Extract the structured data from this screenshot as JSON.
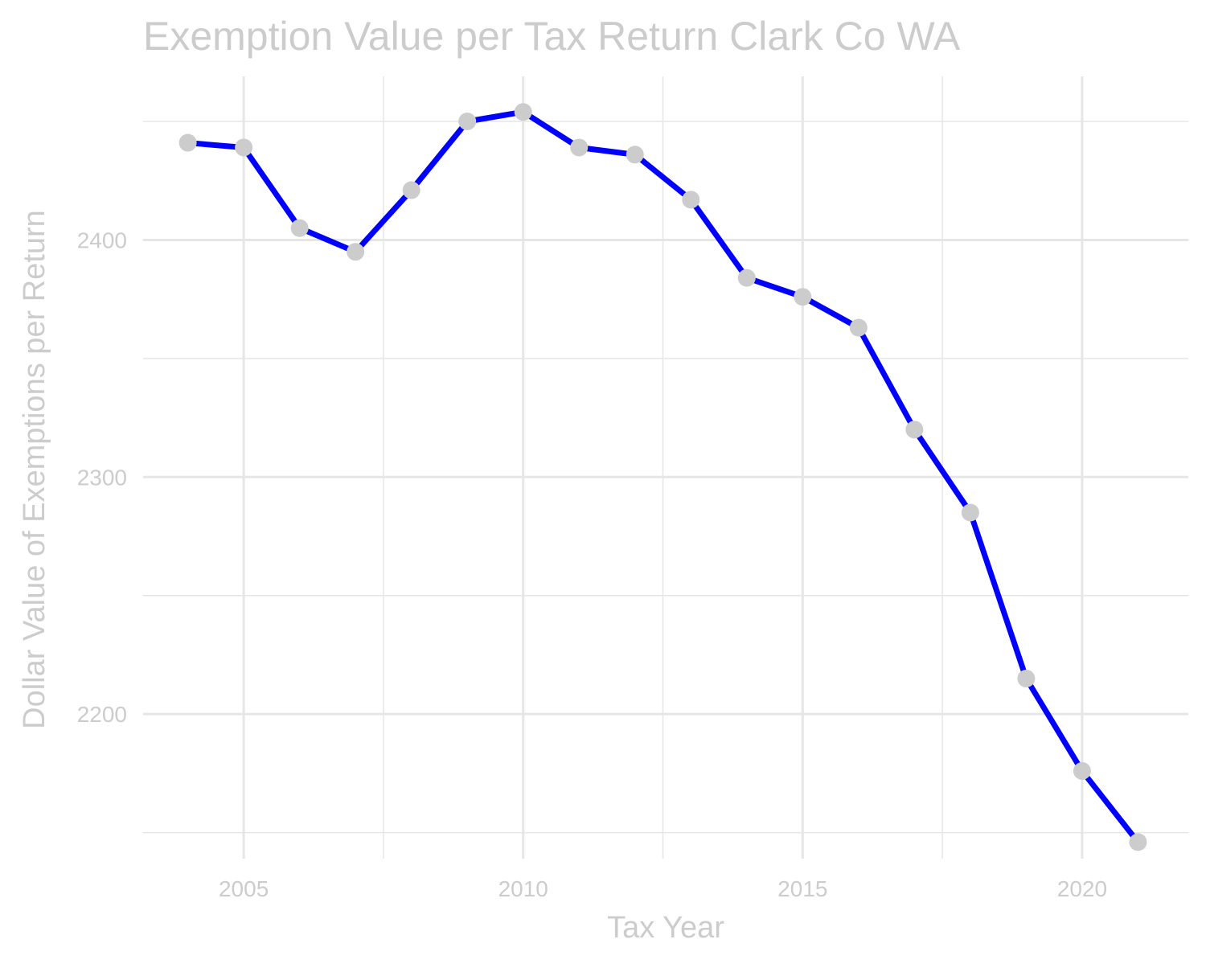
{
  "chart_data": {
    "type": "line",
    "title": "Exemption Value per Tax Return Clark Co WA",
    "xlabel": "Tax Year",
    "ylabel": "Dollar Value of Exemptions per Return",
    "x": [
      2004,
      2005,
      2006,
      2007,
      2008,
      2009,
      2010,
      2011,
      2012,
      2013,
      2014,
      2015,
      2016,
      2017,
      2018,
      2019,
      2020,
      2021
    ],
    "series": [
      {
        "values": [
          2441,
          2439,
          2405,
          2395,
          2421,
          2450,
          2454,
          2439,
          2436,
          2417,
          2384,
          2376,
          2363,
          2320,
          2285,
          2215,
          2176,
          2146
        ]
      }
    ],
    "xlim": [
      2003.2,
      2021.9
    ],
    "ylim": [
      2139,
      2469
    ],
    "x_ticks": [
      2005,
      2010,
      2015,
      2020
    ],
    "x_tick_labels": [
      "2005",
      "2010",
      "2015",
      "2020"
    ],
    "y_ticks": [
      2200,
      2300,
      2400
    ],
    "y_tick_labels": [
      "2200",
      "2300",
      "2400"
    ],
    "x_minor_ticks": [
      2007.5,
      2012.5,
      2017.5
    ],
    "y_minor_ticks": [
      2150,
      2250,
      2350,
      2450
    ],
    "grid": true,
    "legend": "none",
    "colors": {
      "line": "#0000ff",
      "points": "#cccccc",
      "text": "#cccccc",
      "grid": "#e6e6e6",
      "background": "#ffffff"
    }
  }
}
